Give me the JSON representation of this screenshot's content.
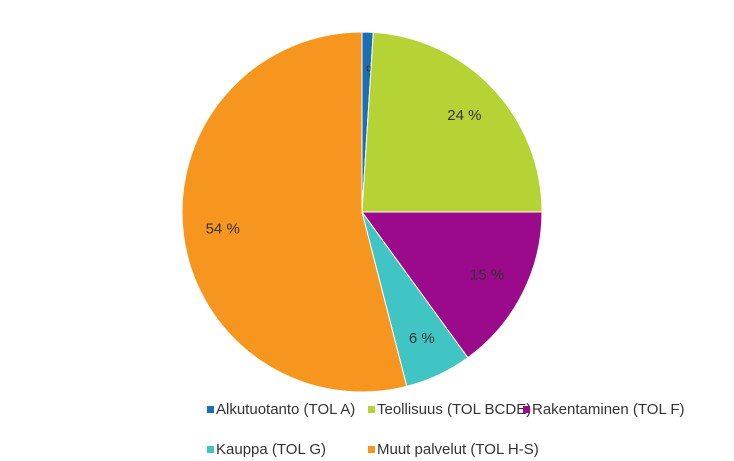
{
  "chart_data": {
    "type": "pie",
    "categories": [
      "Alkutuotanto (TOL A)",
      "Teollisuus (TOL BCDE)",
      "Rakentaminen (TOL F)",
      "Kauppa (TOL G)",
      "Muut palvelut (TOL H-S)"
    ],
    "values": [
      1,
      24,
      15,
      6,
      54
    ],
    "value_labels": [
      "1 %",
      "24 %",
      "15 %",
      "6 %",
      "54 %"
    ],
    "colors": [
      "#1b6fb5",
      "#b5d334",
      "#9b0a8a",
      "#40c4c4",
      "#f7961e"
    ]
  }
}
